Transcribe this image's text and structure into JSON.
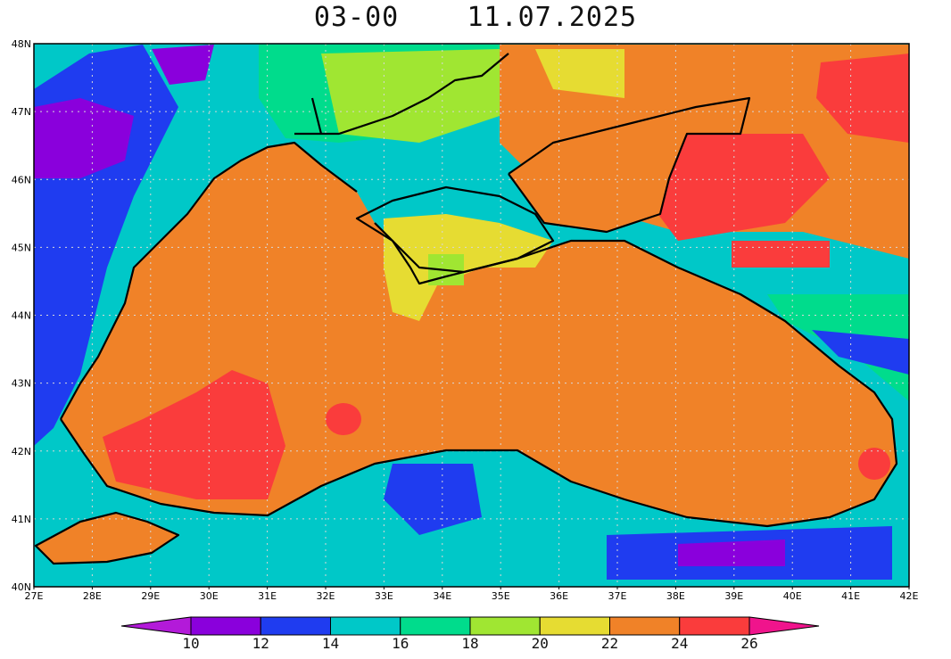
{
  "title": {
    "time": "03-00",
    "date": "11.07.2025"
  },
  "map": {
    "lon_range": [
      27,
      42
    ],
    "lat_range": [
      40,
      48
    ],
    "lon_labels": [
      "27E",
      "28E",
      "29E",
      "30E",
      "31E",
      "32E",
      "33E",
      "34E",
      "35E",
      "36E",
      "37E",
      "38E",
      "39E",
      "40E",
      "41E",
      "42E"
    ],
    "lat_labels": [
      "40N",
      "41N",
      "42N",
      "43N",
      "44N",
      "45N",
      "46N",
      "47N",
      "48N"
    ],
    "gridlines": "dotted"
  },
  "colorbar": {
    "labels": [
      "10",
      "12",
      "14",
      "16",
      "18",
      "20",
      "22",
      "24",
      "26"
    ],
    "colors": [
      "#b31ad9",
      "#8a00dc",
      "#1f3cf0",
      "#00c8c8",
      "#00dc8c",
      "#a0e632",
      "#e6dc32",
      "#f08228",
      "#fa3c3c",
      "#f0148c"
    ],
    "extend": "both"
  }
}
